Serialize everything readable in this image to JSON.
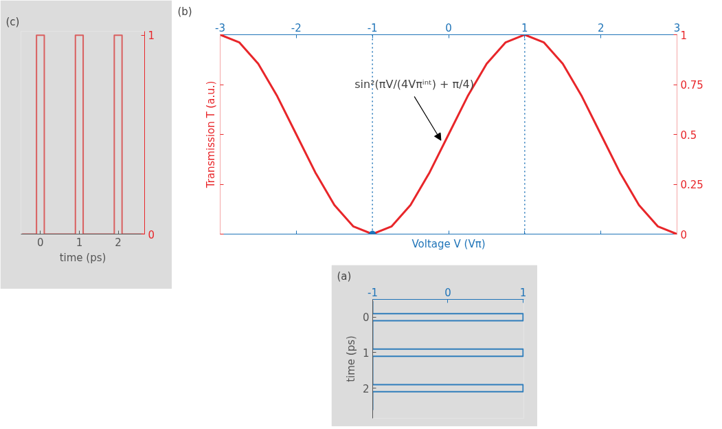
{
  "chart_data": [
    {
      "type": "line",
      "title": "(c)",
      "xlabel": "time (ps)",
      "x": [
        -0.47,
        -0.1,
        -0.1,
        0.1,
        0.1,
        0.9,
        0.9,
        1.1,
        1.1,
        1.9,
        1.9,
        2.1,
        2.1,
        2.66
      ],
      "series": [
        {
          "color": "#d95f5f",
          "values": [
            0,
            0,
            1,
            1,
            0,
            0,
            1,
            1,
            0,
            0,
            1,
            1,
            0,
            0
          ]
        }
      ],
      "xlim": [
        -0.5,
        2.68
      ],
      "xticks": [
        0,
        1,
        2
      ],
      "ylim": [
        0,
        1.02
      ],
      "yticks": [
        0,
        1
      ]
    },
    {
      "type": "line",
      "title": "(b)",
      "xlabel": "Voltage V (Vπ)",
      "ylabel": "Transmission T (a.u.)",
      "x": [
        -3,
        -2.75,
        -2.5,
        -2.25,
        -2,
        -1.75,
        -1.5,
        -1.25,
        -1,
        -0.75,
        -0.5,
        -0.25,
        0,
        0.25,
        0.5,
        0.75,
        1,
        1.25,
        1.5,
        1.75,
        2,
        2.25,
        2.5,
        2.75,
        3
      ],
      "series": [
        {
          "color": "#e8262a",
          "values": [
            1,
            0.962,
            0.854,
            0.691,
            0.5,
            0.309,
            0.146,
            0.038,
            0,
            0.038,
            0.146,
            0.309,
            0.5,
            0.691,
            0.854,
            0.962,
            1,
            0.962,
            0.854,
            0.691,
            0.5,
            0.309,
            0.146,
            0.038,
            0
          ]
        },
        {
          "type": "scatter",
          "marker": "circle",
          "x": [
            -1
          ],
          "color": "#1f74b8",
          "values": [
            0
          ]
        }
      ],
      "xlim": [
        -3,
        3
      ],
      "xticks": [
        -3,
        -2,
        -1,
        0,
        1,
        2,
        3
      ],
      "ylim": [
        0,
        1
      ],
      "yticks": [
        0,
        0.25,
        0.5,
        0.75,
        1
      ],
      "ref_lines": [
        {
          "axis": "x",
          "value": -1,
          "color": "#1f74b8",
          "line_style": "dotted"
        },
        {
          "axis": "x",
          "value": 1,
          "color": "#1f74b8",
          "line_style": "dotted"
        }
      ],
      "annotations": [
        {
          "text": "sin²(πV/(4Vπⁱⁿᵗ) + π/4)",
          "x": -0.1,
          "y": 0.47
        }
      ]
    },
    {
      "type": "line",
      "orientation": "horizontal",
      "title": "(a)",
      "ylabel": "time (ps)",
      "x": [
        -0.45,
        -0.1,
        -0.1,
        0.1,
        0.1,
        0.9,
        0.9,
        1.1,
        1.1,
        1.9,
        1.9,
        2.1,
        2.1,
        2.62
      ],
      "series": [
        {
          "color": "#2f7dbb",
          "values": [
            -1,
            -1,
            1,
            1,
            -1,
            -1,
            1,
            1,
            -1,
            -1,
            1,
            1,
            -1,
            -1
          ]
        }
      ],
      "xlim": [
        -1,
        1.01
      ],
      "xticks": [
        -1,
        0,
        1
      ],
      "ylim": [
        2.85,
        -0.5
      ],
      "yticks": [
        0,
        1,
        2
      ]
    }
  ]
}
